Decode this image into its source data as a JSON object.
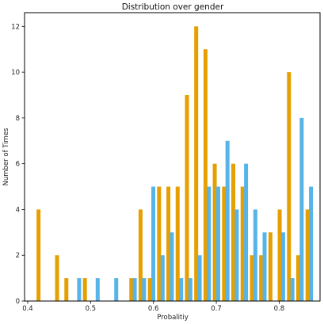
{
  "chart_data": {
    "type": "bar",
    "title": "Distribution over gender",
    "xlabel": "Probalitiy",
    "ylabel": "Number of Times",
    "xlim": [
      0.395,
      0.865
    ],
    "ylim": [
      0,
      12.6
    ],
    "xticks": [
      0.4,
      0.5,
      0.6,
      0.7,
      0.8
    ],
    "xtick_labels": [
      "0.4",
      "0.5",
      "0.6",
      "0.7",
      "0.8"
    ],
    "yticks": [
      0,
      2,
      4,
      6,
      8,
      10,
      12
    ],
    "ytick_labels": [
      "0",
      "2",
      "4",
      "6",
      "8",
      "10",
      "12"
    ],
    "grid": false,
    "legend": "none",
    "bar_width": 0.0063,
    "series": [
      {
        "color": "#e69f00",
        "points": [
          {
            "x": 0.4172,
            "y": 4
          },
          {
            "x": 0.4467,
            "y": 2
          },
          {
            "x": 0.4615,
            "y": 1
          },
          {
            "x": 0.491,
            "y": 1
          },
          {
            "x": 0.5648,
            "y": 1
          },
          {
            "x": 0.5795,
            "y": 4
          },
          {
            "x": 0.5943,
            "y": 1
          },
          {
            "x": 0.609,
            "y": 5
          },
          {
            "x": 0.6238,
            "y": 5
          },
          {
            "x": 0.6385,
            "y": 5
          },
          {
            "x": 0.6533,
            "y": 9
          },
          {
            "x": 0.668,
            "y": 12
          },
          {
            "x": 0.6828,
            "y": 11
          },
          {
            "x": 0.6975,
            "y": 6
          },
          {
            "x": 0.7123,
            "y": 5
          },
          {
            "x": 0.727,
            "y": 6
          },
          {
            "x": 0.7418,
            "y": 5
          },
          {
            "x": 0.7566,
            "y": 2
          },
          {
            "x": 0.7713,
            "y": 2
          },
          {
            "x": 0.7861,
            "y": 3
          },
          {
            "x": 0.8008,
            "y": 4
          },
          {
            "x": 0.8156,
            "y": 10
          },
          {
            "x": 0.8303,
            "y": 2
          },
          {
            "x": 0.8451,
            "y": 4
          }
        ]
      },
      {
        "color": "#56b4e9",
        "points": [
          {
            "x": 0.4818,
            "y": 1
          },
          {
            "x": 0.5113,
            "y": 1
          },
          {
            "x": 0.5408,
            "y": 1
          },
          {
            "x": 0.5703,
            "y": 1
          },
          {
            "x": 0.5851,
            "y": 1
          },
          {
            "x": 0.5998,
            "y": 5
          },
          {
            "x": 0.6146,
            "y": 2
          },
          {
            "x": 0.6293,
            "y": 3
          },
          {
            "x": 0.6441,
            "y": 1
          },
          {
            "x": 0.6588,
            "y": 1
          },
          {
            "x": 0.6736,
            "y": 2
          },
          {
            "x": 0.6883,
            "y": 5
          },
          {
            "x": 0.7031,
            "y": 5
          },
          {
            "x": 0.7178,
            "y": 7
          },
          {
            "x": 0.7326,
            "y": 4
          },
          {
            "x": 0.7473,
            "y": 6
          },
          {
            "x": 0.7621,
            "y": 4
          },
          {
            "x": 0.7768,
            "y": 3
          },
          {
            "x": 0.8063,
            "y": 3
          },
          {
            "x": 0.8211,
            "y": 1
          },
          {
            "x": 0.8358,
            "y": 8
          },
          {
            "x": 0.8506,
            "y": 5
          }
        ]
      }
    ]
  }
}
